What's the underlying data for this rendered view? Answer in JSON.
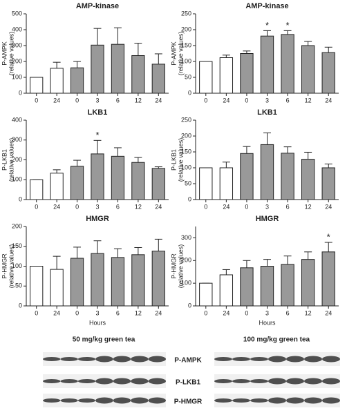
{
  "chart_data": [
    {
      "type": "bar",
      "title": "AMP-kinase",
      "ylabel": [
        "P-AMPK",
        "(relative values)"
      ],
      "categories": [
        "0",
        "24",
        "0",
        "3",
        "6",
        "12",
        "24"
      ],
      "values": [
        100,
        157,
        160,
        303,
        308,
        237,
        183
      ],
      "errors": [
        0,
        38,
        40,
        105,
        104,
        78,
        65
      ],
      "markers": [
        null,
        null,
        null,
        null,
        null,
        null,
        null
      ],
      "bar_colors": [
        "#ffffff",
        "#ffffff",
        "#999999",
        "#999999",
        "#999999",
        "#999999",
        "#999999"
      ],
      "ylim": [
        0,
        500
      ],
      "yticks": [
        0,
        100,
        200,
        300,
        400,
        500
      ]
    },
    {
      "type": "bar",
      "title": "AMP-kinase",
      "ylabel": [
        "P-AMPK",
        "(relative values)"
      ],
      "categories": [
        "0",
        "24",
        "0",
        "3",
        "6",
        "12",
        "24"
      ],
      "values": [
        100,
        112,
        125,
        180,
        185,
        150,
        128
      ],
      "errors": [
        0,
        8,
        8,
        17,
        12,
        13,
        17
      ],
      "markers": [
        null,
        null,
        null,
        "*",
        "*",
        null,
        null
      ],
      "bar_colors": [
        "#ffffff",
        "#ffffff",
        "#999999",
        "#999999",
        "#999999",
        "#999999",
        "#999999"
      ],
      "ylim": [
        0,
        250
      ],
      "yticks": [
        0,
        50,
        100,
        150,
        200,
        250
      ]
    },
    {
      "type": "bar",
      "title": "LKB1",
      "ylabel": [
        "P-LKB1",
        "(relative values)"
      ],
      "categories": [
        "0",
        "24",
        "0",
        "3",
        "6",
        "12",
        "24"
      ],
      "values": [
        100,
        133,
        168,
        230,
        218,
        187,
        157
      ],
      "errors": [
        0,
        17,
        30,
        68,
        43,
        25,
        8
      ],
      "markers": [
        null,
        null,
        null,
        "*",
        null,
        null,
        null
      ],
      "bar_colors": [
        "#ffffff",
        "#ffffff",
        "#999999",
        "#999999",
        "#999999",
        "#999999",
        "#999999"
      ],
      "ylim": [
        0,
        400
      ],
      "yticks": [
        0,
        100,
        200,
        300,
        400
      ]
    },
    {
      "type": "bar",
      "title": "LKB1",
      "ylabel": [
        "P-LKB1",
        "(relative values)"
      ],
      "categories": [
        "0",
        "24",
        "0",
        "3",
        "6",
        "12",
        "24"
      ],
      "values": [
        100,
        100,
        145,
        173,
        146,
        127,
        100
      ],
      "errors": [
        0,
        18,
        22,
        37,
        20,
        22,
        12
      ],
      "markers": [
        null,
        null,
        null,
        null,
        null,
        null,
        null
      ],
      "bar_colors": [
        "#ffffff",
        "#ffffff",
        "#999999",
        "#999999",
        "#999999",
        "#999999",
        "#999999"
      ],
      "ylim": [
        0,
        250
      ],
      "yticks": [
        0,
        50,
        100,
        150,
        200,
        250
      ]
    },
    {
      "type": "bar",
      "title": "HMGR",
      "ylabel": [
        "P-HMGR",
        "(relative values)"
      ],
      "xlabel": "Hours",
      "categories": [
        "0",
        "24",
        "0",
        "3",
        "6",
        "12",
        "24"
      ],
      "values": [
        100,
        92,
        120,
        132,
        122,
        129,
        138
      ],
      "errors": [
        0,
        33,
        28,
        32,
        22,
        18,
        30
      ],
      "markers": [
        null,
        null,
        null,
        null,
        null,
        null,
        null
      ],
      "bar_colors": [
        "#ffffff",
        "#ffffff",
        "#999999",
        "#999999",
        "#999999",
        "#999999",
        "#999999"
      ],
      "ylim": [
        0,
        200
      ],
      "yticks": [
        0,
        50,
        100,
        150,
        200
      ]
    },
    {
      "type": "bar",
      "title": "HMGR",
      "ylabel": [
        "P-HMGR",
        "(relative values)"
      ],
      "xlabel": "Hours",
      "categories": [
        "0",
        "24",
        "0",
        "3",
        "6",
        "12",
        "24"
      ],
      "values": [
        100,
        137,
        168,
        175,
        183,
        205,
        238
      ],
      "errors": [
        0,
        23,
        32,
        30,
        37,
        33,
        42
      ],
      "markers": [
        null,
        null,
        null,
        null,
        null,
        null,
        "*"
      ],
      "bar_colors": [
        "#ffffff",
        "#ffffff",
        "#999999",
        "#999999",
        "#999999",
        "#999999",
        "#999999"
      ],
      "ylim": [
        0,
        350
      ],
      "yticks": [
        0,
        100,
        200,
        300
      ]
    }
  ],
  "blots": {
    "left_title": "50 mg/kg green tea",
    "right_title": "100 mg/kg green tea",
    "rows": [
      "P-AMPK",
      "P-LKB1",
      "P-HMGR"
    ]
  }
}
